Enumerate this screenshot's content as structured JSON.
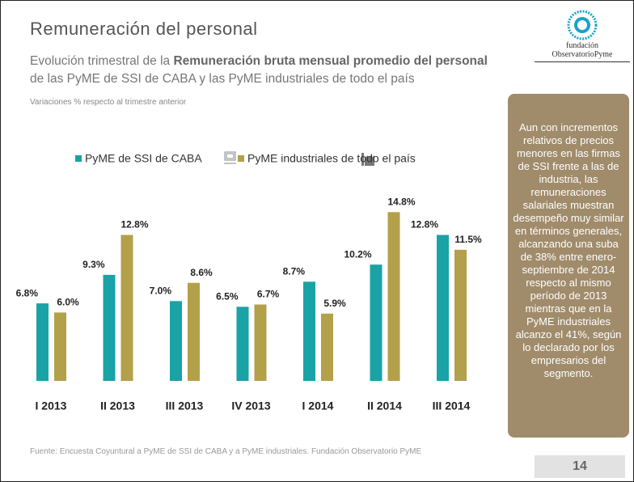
{
  "header": {
    "title": "Remuneración del personal",
    "subtitle_start": "Evolución trimestral de la",
    "subtitle_bold": "Remuneración bruta mensual promedio del personal",
    "subtitle_end": "de las PyME de SSI de CABA y las PyME industriales de todo el país",
    "note": "Variaciones % respecto al trimestre anterior"
  },
  "logo": {
    "line1": "fundación",
    "line2": "ObservatorioPyme"
  },
  "sidebar": "Aun con incrementos relativos de precios menores en las firmas de SSI frente a las de industria, las remuneraciones salariales muestran desempeño muy similar en términos generales, alcanzando una suba de 38% entre enero-septiembre de 2014 respecto al mismo período de 2013 mientras que en la PyME industriales alcanzo el 41%, según lo declarado por los empresarios del segmento.",
  "source": "Fuente: Encuesta Coyuntural a PyME de SSI de CABA y a PyME industriales. Fundación Observatorio PyME",
  "page_number": "14",
  "chart_data": {
    "type": "bar",
    "categories": [
      "I 2013",
      "II 2013",
      "III 2013",
      "IV 2013",
      "I 2014",
      "II 2014",
      "III 2014"
    ],
    "series": [
      {
        "name": "PyME de SSI de CABA",
        "color": "#19a3a6",
        "values": [
          6.8,
          9.3,
          7.0,
          6.5,
          8.7,
          10.2,
          12.8
        ],
        "value_labels": [
          "6.8%",
          "9.3%",
          "7.0%",
          "6.5%",
          "8.7%",
          "10.2%",
          "12.8%"
        ]
      },
      {
        "name": "PyME industriales de todo el país",
        "color": "#b3a04b",
        "values": [
          6.0,
          12.8,
          8.6,
          6.7,
          5.9,
          14.8,
          11.5
        ],
        "value_labels": [
          "6.0%",
          "12.8%",
          "8.6%",
          "6.7%",
          "5.9%",
          "14.8%",
          "11.5%"
        ]
      }
    ]
  }
}
